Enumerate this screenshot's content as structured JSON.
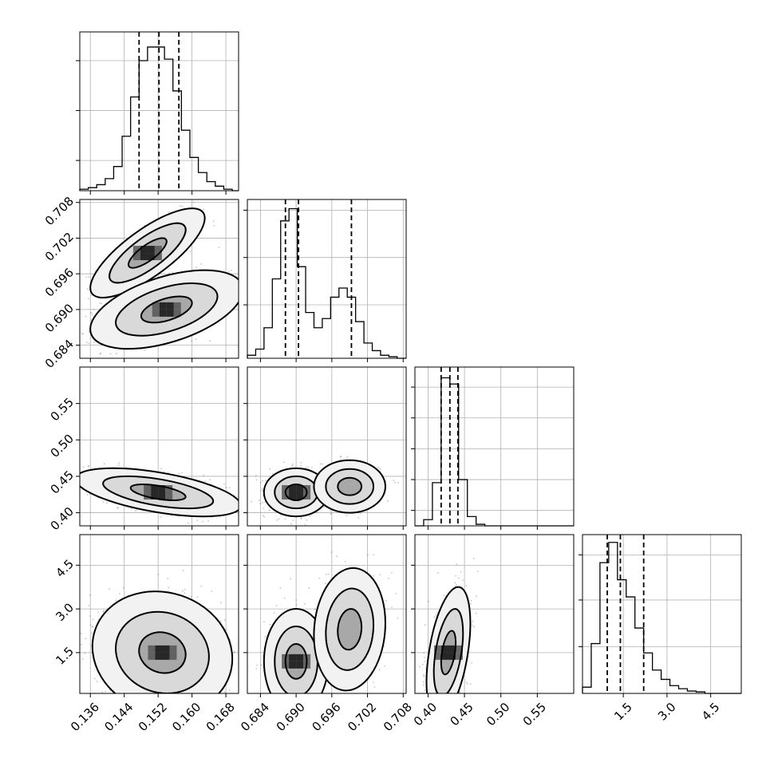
{
  "chart_data": {
    "type": "corner",
    "title": "",
    "colors": {
      "line": "#000000",
      "grid": "#b0b0b0",
      "scatter": "#555555",
      "fill_dark": "#000000",
      "fill_light": "#f0f0f0"
    },
    "parameters": [
      {
        "range": [
          0.1335,
          0.171
        ],
        "ticks": [
          0.136,
          0.144,
          0.152,
          0.16,
          0.168
        ],
        "tick_labels": [
          "0.136",
          "0.144",
          "0.152",
          "0.160",
          "0.168"
        ],
        "quantiles": [
          0.1475,
          0.1522,
          0.1569
        ]
      },
      {
        "range": [
          0.6818,
          0.7085
        ],
        "ticks": [
          0.684,
          0.69,
          0.696,
          0.702,
          0.708
        ],
        "tick_labels": [
          "0.684",
          "0.690",
          "0.696",
          "0.702",
          "0.708"
        ],
        "quantiles": [
          0.6882,
          0.6904,
          0.6993
        ]
      },
      {
        "range": [
          0.382,
          0.6
        ],
        "ticks": [
          0.4,
          0.45,
          0.5,
          0.55
        ],
        "tick_labels": [
          "0.40",
          "0.45",
          "0.50",
          "0.55"
        ],
        "quantiles": [
          0.418,
          0.43,
          0.441
        ]
      },
      {
        "range": [
          0.1,
          5.55
        ],
        "ticks": [
          1.5,
          3.0,
          4.5
        ],
        "tick_labels": [
          "1.5",
          "3.0",
          "4.5"
        ],
        "quantiles": [
          0.95,
          1.4,
          2.2
        ]
      }
    ],
    "histograms": [
      {
        "bin_edges": [
          0.1335,
          0.1355,
          0.1375,
          0.1395,
          0.1415,
          0.1435,
          0.1455,
          0.1475,
          0.1495,
          0.1515,
          0.1535,
          0.1555,
          0.1575,
          0.1595,
          0.1615,
          0.1635,
          0.1655,
          0.1675,
          0.1695,
          0.171
        ],
        "counts": [
          1,
          2,
          4,
          8,
          16,
          36,
          62,
          86,
          95,
          95,
          87,
          66,
          40,
          22,
          12,
          6,
          3,
          1,
          0
        ],
        "ylim": [
          0,
          105
        ],
        "yticks": [
          20,
          53,
          86
        ]
      },
      {
        "bin_edges": [
          0.6818,
          0.6832,
          0.6846,
          0.686,
          0.6874,
          0.6888,
          0.6902,
          0.6916,
          0.693,
          0.6944,
          0.6958,
          0.6972,
          0.6986,
          0.7,
          0.7014,
          0.7028,
          0.7042,
          0.7056,
          0.707,
          0.7085
        ],
        "counts": [
          2,
          6,
          20,
          52,
          90,
          98,
          60,
          30,
          20,
          26,
          40,
          46,
          40,
          24,
          10,
          5,
          2,
          1,
          0
        ],
        "ylim": [
          0,
          104
        ],
        "yticks": [
          35,
          66,
          97
        ]
      },
      {
        "bin_edges": [
          0.382,
          0.394,
          0.406,
          0.418,
          0.43,
          0.442,
          0.454,
          0.466,
          0.478,
          0.49,
          0.502,
          0.514,
          0.526,
          0.538,
          0.55,
          0.562,
          0.574,
          0.586,
          0.6
        ],
        "counts": [
          0,
          4,
          28,
          96,
          92,
          30,
          6,
          1,
          0,
          0,
          0,
          0,
          0,
          0,
          0,
          0,
          0,
          0
        ],
        "ylim": [
          0,
          103
        ],
        "yticks": [
          10,
          30,
          50,
          70,
          90
        ]
      },
      {
        "bin_edges": [
          0.1,
          0.4,
          0.7,
          1.0,
          1.3,
          1.6,
          1.9,
          2.2,
          2.5,
          2.8,
          3.1,
          3.4,
          3.7,
          4.0,
          4.3,
          4.6,
          4.9,
          5.2,
          5.55
        ],
        "counts": [
          4,
          32,
          84,
          97,
          73,
          62,
          42,
          26,
          15,
          9,
          5,
          3,
          1.5,
          1,
          0,
          0,
          0,
          0
        ],
        "ylim": [
          0,
          102
        ],
        "yticks": [
          30,
          60,
          89
        ]
      }
    ],
    "pairs": [
      {
        "x": 0,
        "y": 1,
        "modes": [
          {
            "cx": 0.1495,
            "cy": 0.6995,
            "sx": 0.0045,
            "sy": 0.0025,
            "rho": 0.78,
            "w": 0.4
          },
          {
            "cx": 0.154,
            "cy": 0.69,
            "sx": 0.006,
            "sy": 0.0022,
            "rho": 0.5,
            "w": 0.6
          }
        ]
      },
      {
        "x": 0,
        "y": 2,
        "modes": [
          {
            "cx": 0.152,
            "cy": 0.428,
            "sx": 0.0065,
            "sy": 0.011,
            "rho": -0.55,
            "w": 1.0
          }
        ]
      },
      {
        "x": 1,
        "y": 2,
        "modes": [
          {
            "cx": 0.69,
            "cy": 0.428,
            "sx": 0.0018,
            "sy": 0.011,
            "rho": 0.0,
            "w": 0.6
          },
          {
            "cx": 0.699,
            "cy": 0.436,
            "sx": 0.002,
            "sy": 0.012,
            "rho": 0.0,
            "w": 0.4
          }
        ]
      },
      {
        "x": 0,
        "y": 3,
        "modes": [
          {
            "cx": 0.153,
            "cy": 1.5,
            "sx": 0.0055,
            "sy": 0.7,
            "rho": -0.1,
            "w": 1.0
          }
        ]
      },
      {
        "x": 1,
        "y": 3,
        "modes": [
          {
            "cx": 0.69,
            "cy": 1.2,
            "sx": 0.0018,
            "sy": 0.6,
            "rho": 0.0,
            "w": 0.6
          },
          {
            "cx": 0.699,
            "cy": 2.3,
            "sx": 0.002,
            "sy": 0.7,
            "rho": 0.1,
            "w": 0.4
          }
        ]
      },
      {
        "x": 2,
        "y": 3,
        "modes": [
          {
            "cx": 0.428,
            "cy": 1.5,
            "sx": 0.01,
            "sy": 0.75,
            "rho": 0.45,
            "w": 1.0
          }
        ]
      }
    ],
    "contour_levels": [
      0.393,
      0.865,
      0.989
    ],
    "grid": true,
    "xlabel": "",
    "ylabel": ""
  }
}
